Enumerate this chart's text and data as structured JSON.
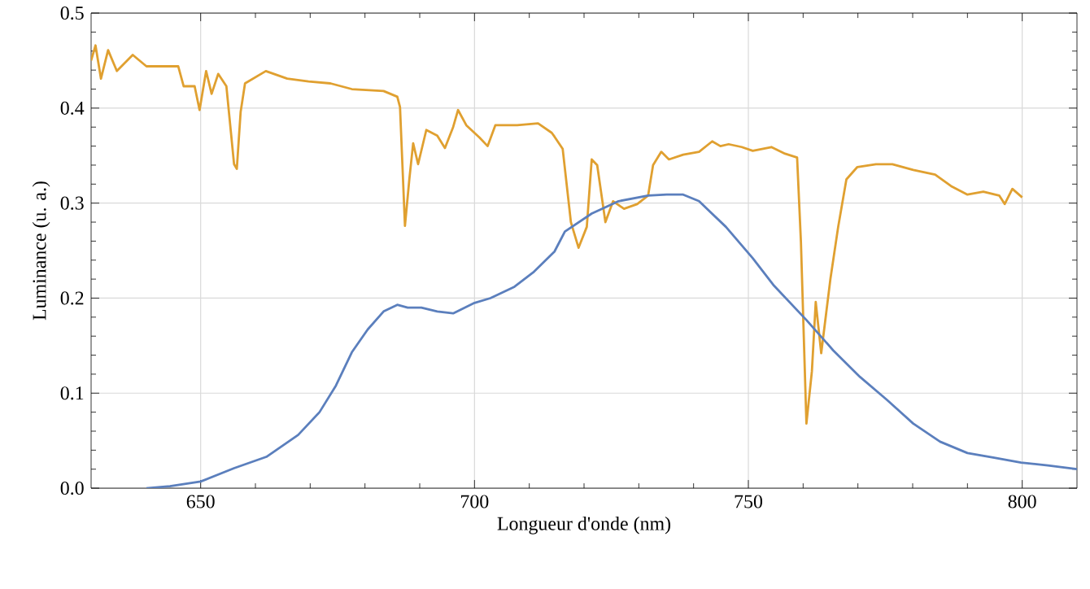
{
  "chart_data": {
    "type": "line",
    "xlabel": "Longueur d'onde (nm)",
    "ylabel": "Luminance (u. a.)",
    "xlim": [
      630,
      810
    ],
    "ylim": [
      0,
      0.5
    ],
    "xticks": [
      650,
      700,
      750,
      800
    ],
    "yticks": [
      {
        "value": 0,
        "label": "0.0"
      },
      {
        "value": 0.1,
        "label": "0.1"
      },
      {
        "value": 0.2,
        "label": "0.2"
      },
      {
        "value": 0.3,
        "label": "0.3"
      },
      {
        "value": 0.4,
        "label": "0.4"
      },
      {
        "value": 0.5,
        "label": "0.5"
      }
    ],
    "grid": true,
    "marker": "none",
    "line_style": "solid",
    "series": [
      {
        "color": "#e0a030",
        "x": [
          630,
          630.8,
          631.8,
          633.1,
          634.7,
          637.6,
          640.1,
          643.5,
          645.9,
          646.9,
          648.9,
          649.8,
          651.0,
          652.0,
          653.2,
          654.7,
          656.1,
          656.6,
          657.3,
          658.1,
          661.9,
          665.8,
          669.7,
          673.7,
          677.6,
          683.4,
          685.9,
          686.4,
          687.3,
          688.1,
          688.8,
          689.7,
          691.2,
          693.2,
          694.6,
          696.1,
          697.0,
          698.5,
          700.9,
          702.4,
          703.8,
          707.8,
          711.6,
          714.1,
          714.6,
          716.1,
          717.6,
          719.0,
          720.5,
          721.4,
          722.4,
          723.9,
          725.3,
          727.3,
          729.7,
          731.7,
          732.6,
          734.1,
          735.5,
          738.1,
          741.0,
          743.4,
          744.9,
          746.4,
          748.8,
          750.8,
          754.2,
          756.7,
          758.9,
          759.6,
          760.6,
          761.6,
          762.3,
          763.3,
          765.0,
          766.4,
          767.9,
          769.9,
          773.3,
          776.3,
          780.1,
          784.1,
          787.0,
          790.0,
          792.9,
          795.8,
          796.8,
          798.2,
          800.0
        ],
        "values": [
          0.45,
          0.466,
          0.431,
          0.461,
          0.439,
          0.456,
          0.444,
          0.444,
          0.444,
          0.423,
          0.423,
          0.398,
          0.439,
          0.415,
          0.436,
          0.423,
          0.341,
          0.336,
          0.396,
          0.426,
          0.439,
          0.431,
          0.428,
          0.426,
          0.42,
          0.418,
          0.412,
          0.401,
          0.276,
          0.325,
          0.363,
          0.341,
          0.377,
          0.371,
          0.358,
          0.38,
          0.398,
          0.382,
          0.369,
          0.36,
          0.382,
          0.382,
          0.384,
          0.374,
          0.37,
          0.357,
          0.28,
          0.253,
          0.275,
          0.346,
          0.34,
          0.28,
          0.302,
          0.294,
          0.299,
          0.308,
          0.34,
          0.354,
          0.346,
          0.351,
          0.354,
          0.365,
          0.36,
          0.362,
          0.359,
          0.355,
          0.359,
          0.352,
          0.348,
          0.259,
          0.068,
          0.123,
          0.196,
          0.142,
          0.221,
          0.275,
          0.325,
          0.338,
          0.341,
          0.341,
          0.335,
          0.33,
          0.318,
          0.309,
          0.312,
          0.308,
          0.299,
          0.315,
          0.306
        ]
      },
      {
        "color": "#5b7fbd",
        "x": [
          640.1,
          644.4,
          650.0,
          656.1,
          662.0,
          667.8,
          671.7,
          674.7,
          677.6,
          680.5,
          683.4,
          685.9,
          687.8,
          690.3,
          693.2,
          696.1,
          700.0,
          702.9,
          707.3,
          710.7,
          714.6,
          716.5,
          721.4,
          726.3,
          731.7,
          735.1,
          738.1,
          741.0,
          745.9,
          750.8,
          754.7,
          760.6,
          765.5,
          770.4,
          775.3,
          780.1,
          785.0,
          790.0,
          794.9,
          799.8,
          804.7,
          810.0
        ],
        "values": [
          0.0,
          0.002,
          0.007,
          0.021,
          0.033,
          0.056,
          0.08,
          0.108,
          0.143,
          0.167,
          0.186,
          0.193,
          0.19,
          0.19,
          0.186,
          0.184,
          0.195,
          0.2,
          0.212,
          0.227,
          0.249,
          0.27,
          0.289,
          0.302,
          0.308,
          0.309,
          0.309,
          0.302,
          0.275,
          0.242,
          0.213,
          0.177,
          0.145,
          0.117,
          0.093,
          0.068,
          0.049,
          0.037,
          0.032,
          0.027,
          0.024,
          0.02
        ]
      }
    ]
  }
}
